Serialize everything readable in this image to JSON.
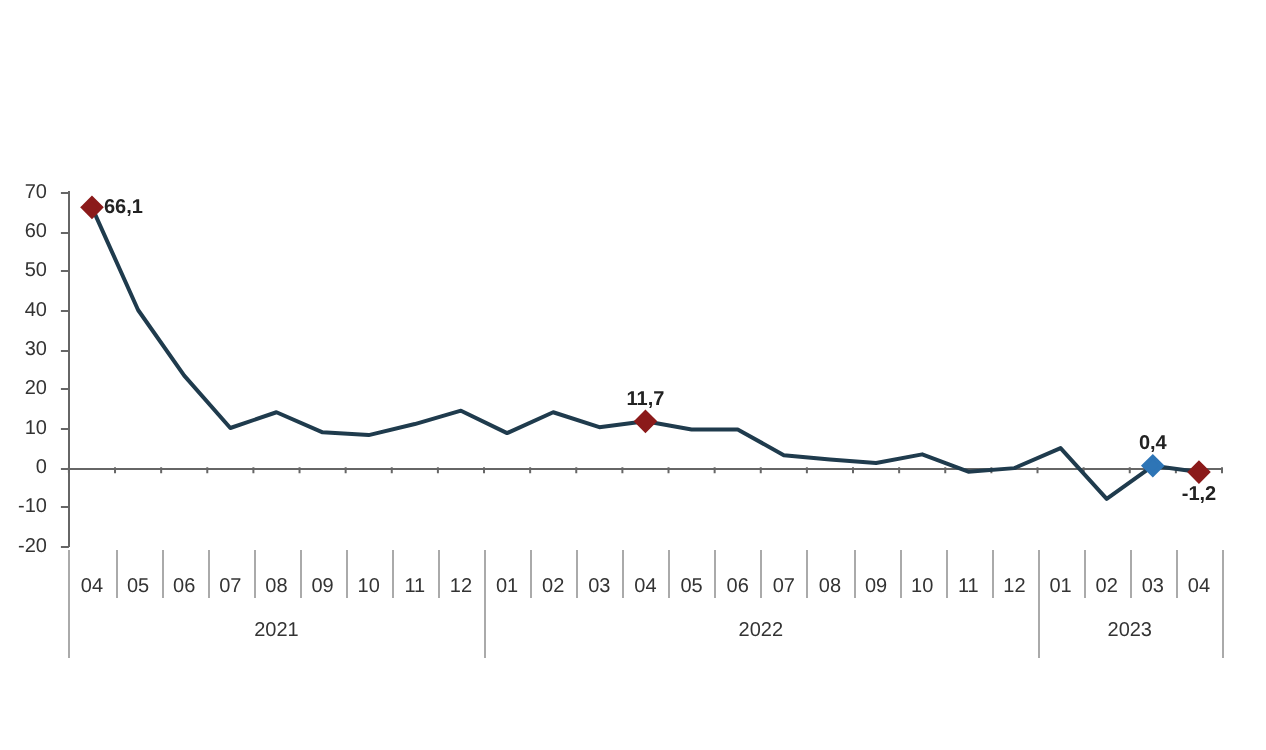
{
  "chart_data": {
    "type": "line",
    "categories": [
      "04",
      "05",
      "06",
      "07",
      "08",
      "09",
      "10",
      "11",
      "12",
      "01",
      "02",
      "03",
      "04",
      "05",
      "06",
      "07",
      "08",
      "09",
      "10",
      "11",
      "12",
      "01",
      "02",
      "03",
      "04"
    ],
    "series": [
      {
        "color": "#1f3b4d",
        "marker": "none",
        "values": [
          66.1,
          40,
          23.3,
          10,
          14,
          8.9,
          8.2,
          11,
          14.4,
          8.7,
          14,
          10.2,
          11.7,
          9.6,
          9.6,
          3.1,
          2,
          1.1,
          3.3,
          -1.1,
          -0.2,
          4.9,
          -8,
          0.4,
          -1.2
        ]
      },
      {
        "type": "scatter",
        "values": [
          66.1,
          null,
          null,
          null,
          null,
          null,
          null,
          null,
          null,
          null,
          null,
          null,
          11.7,
          null,
          null,
          null,
          null,
          null,
          null,
          null,
          null,
          null,
          null,
          0.4,
          -1.2
        ],
        "colors": [
          "#8b1a1a",
          null,
          null,
          null,
          null,
          null,
          null,
          null,
          null,
          null,
          null,
          null,
          "#8b1a1a",
          null,
          null,
          null,
          null,
          null,
          null,
          null,
          null,
          null,
          null,
          "#2e75b6",
          "#8b1a1a"
        ],
        "value_labels": [
          "66,1",
          null,
          null,
          null,
          null,
          null,
          null,
          null,
          null,
          null,
          null,
          null,
          "11,7",
          null,
          null,
          null,
          null,
          null,
          null,
          null,
          null,
          null,
          null,
          "0,4",
          "-1,2"
        ]
      }
    ],
    "annotations": [
      "2021",
      "2022",
      "2023"
    ],
    "ylim": [
      -20,
      70
    ],
    "yticks": [
      -20,
      -10,
      0,
      10,
      20,
      30,
      40,
      50,
      60,
      70
    ],
    "ref_lines": [
      {
        "axis": "y",
        "value": 0,
        "color": "#666666"
      }
    ],
    "grid": false,
    "legend": false,
    "marker": "diamond",
    "line_style": "solid"
  }
}
